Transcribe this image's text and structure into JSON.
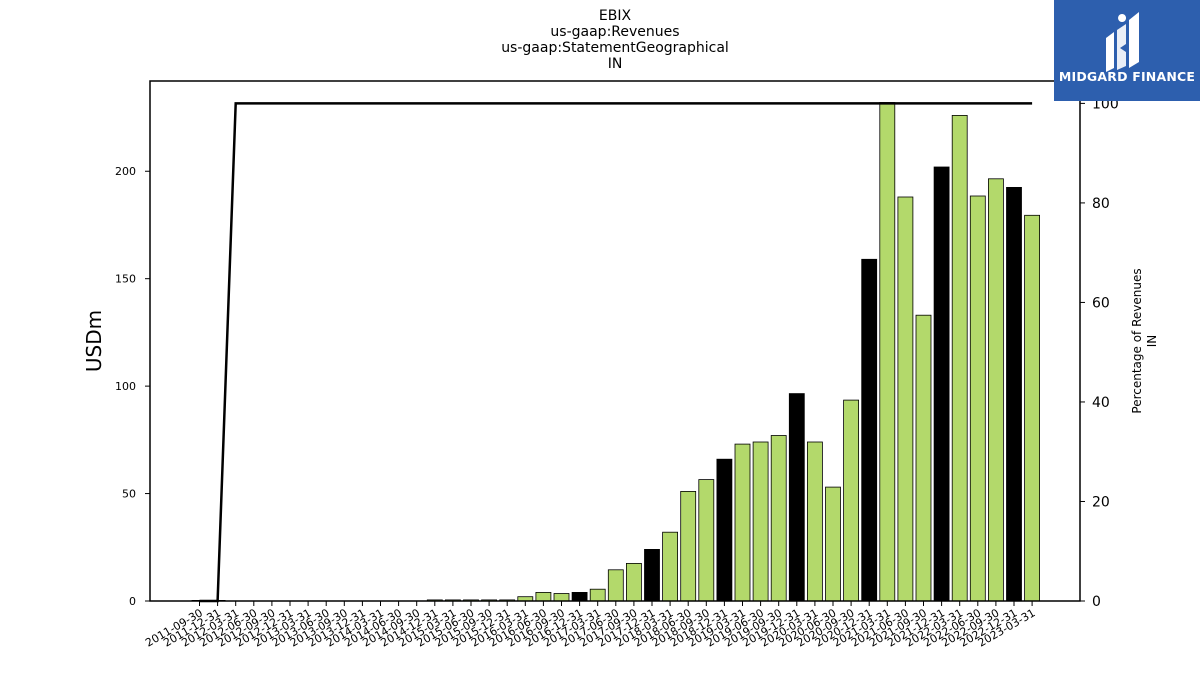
{
  "title_lines": [
    "EBIX",
    "us-gaap:Revenues",
    "us-gaap:StatementGeographical",
    "IN"
  ],
  "logo_text": "MIDGARD FINANCE",
  "colors": {
    "bar_green": "#b3d96b",
    "bar_black": "#000000",
    "line": "#000000",
    "logo_bg": "#2d5fae"
  },
  "chart_data": {
    "type": "bar",
    "title": "EBIX\nus-gaap:Revenues\nus-gaap:StatementGeographical\nIN",
    "ylabel": "USDm",
    "y2label": [
      "Percentage of Revenues",
      "IN"
    ],
    "ylim": [
      0,
      242
    ],
    "y2lim": [
      0,
      104.5
    ],
    "yticks": [
      0,
      50,
      100,
      150,
      200
    ],
    "y2ticks": [
      0,
      20,
      40,
      60,
      80,
      100
    ],
    "categories": [
      "2011-09-30",
      "2011-12-31",
      "2012-03-31",
      "2012-06-30",
      "2012-09-30",
      "2012-12-31",
      "2013-03-31",
      "2013-06-30",
      "2013-09-30",
      "2013-12-31",
      "2014-03-31",
      "2014-06-30",
      "2014-09-30",
      "2014-12-31",
      "2015-03-31",
      "2015-06-30",
      "2015-09-30",
      "2015-12-31",
      "2016-03-31",
      "2016-06-30",
      "2016-09-30",
      "2016-12-31",
      "2017-03-31",
      "2017-06-30",
      "2017-09-30",
      "2017-12-31",
      "2018-03-31",
      "2018-06-30",
      "2018-09-30",
      "2018-12-31",
      "2019-03-31",
      "2019-06-30",
      "2019-09-30",
      "2019-12-31",
      "2020-03-31",
      "2020-06-30",
      "2020-09-30",
      "2020-12-31",
      "2021-03-31",
      "2021-06-30",
      "2021-09-30",
      "2021-12-31",
      "2022-03-31",
      "2022-06-30",
      "2022-09-30",
      "2022-12-31",
      "2023-03-31"
    ],
    "series": [
      {
        "values": [
          0.3,
          0.3,
          0,
          0,
          0,
          0,
          0,
          0,
          0,
          0,
          0,
          0,
          0,
          0.5,
          0.5,
          0.5,
          0.5,
          0.5,
          2,
          4,
          3.5,
          4,
          5.5,
          14.5,
          17.5,
          24,
          32,
          51,
          56.5,
          66,
          73,
          74,
          77,
          96.5,
          74,
          53,
          93.5,
          159,
          232,
          188,
          133,
          202,
          226,
          188.5,
          196.5,
          192.5,
          179.5
        ],
        "colors": [
          "g",
          "g",
          "g",
          "g",
          "g",
          "g",
          "g",
          "g",
          "g",
          "g",
          "g",
          "g",
          "g",
          "g",
          "g",
          "g",
          "g",
          "g",
          "g",
          "g",
          "g",
          "k",
          "g",
          "g",
          "g",
          "k",
          "g",
          "g",
          "g",
          "k",
          "g",
          "g",
          "g",
          "k",
          "g",
          "g",
          "g",
          "k",
          "g",
          "g",
          "g",
          "k",
          "g",
          "g",
          "g",
          "k",
          "g"
        ]
      },
      {
        "axis": "right",
        "kind": "line",
        "values": [
          0,
          0,
          100,
          100,
          100,
          100,
          100,
          100,
          100,
          100,
          100,
          100,
          100,
          100,
          100,
          100,
          100,
          100,
          100,
          100,
          100,
          100,
          100,
          100,
          100,
          100,
          100,
          100,
          100,
          100,
          100,
          100,
          100,
          100,
          100,
          100,
          100,
          100,
          100,
          100,
          100,
          100,
          100,
          100,
          100,
          100,
          100
        ]
      }
    ]
  }
}
